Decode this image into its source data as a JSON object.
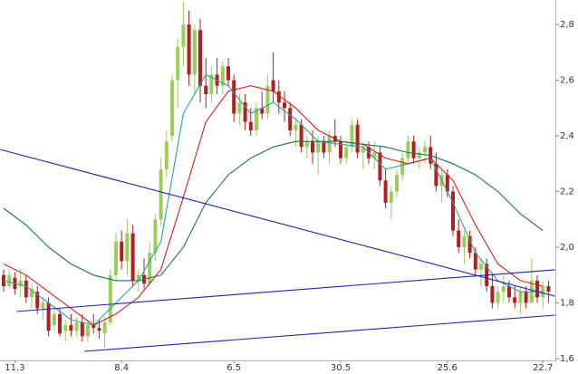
{
  "chart_data": {
    "type": "candlestick",
    "categories": [
      null,
      null,
      "11.3",
      null,
      null,
      null,
      null,
      null,
      null,
      null,
      null,
      null,
      null,
      null,
      null,
      null,
      null,
      null,
      null,
      null,
      null,
      "8.4",
      null,
      null,
      null,
      null,
      null,
      null,
      null,
      null,
      null,
      null,
      null,
      null,
      null,
      null,
      null,
      null,
      null,
      null,
      null,
      "6.5",
      null,
      null,
      null,
      null,
      null,
      null,
      null,
      null,
      null,
      null,
      null,
      null,
      null,
      null,
      null,
      null,
      null,
      null,
      "30.5",
      null,
      null,
      null,
      null,
      null,
      null,
      null,
      null,
      null,
      null,
      null,
      null,
      null,
      null,
      null,
      null,
      null,
      null,
      "25.6",
      null,
      null,
      null,
      null,
      null,
      null,
      null,
      null,
      null,
      null,
      null,
      null,
      null,
      null,
      null,
      null,
      "22.7",
      null
    ],
    "open": [
      1.9,
      1.86,
      1.89,
      1.86,
      1.88,
      1.82,
      1.84,
      1.78,
      1.8,
      1.72,
      1.76,
      1.7,
      1.72,
      1.7,
      1.73,
      1.68,
      1.72,
      1.71,
      1.69,
      1.73,
      1.9,
      2.02,
      1.95,
      2.05,
      1.88,
      1.9,
      1.87,
      1.98,
      2.1,
      2.28,
      2.4,
      2.6,
      2.72,
      2.8,
      2.62,
      2.78,
      2.58,
      2.55,
      2.62,
      2.58,
      2.65,
      2.6,
      2.48,
      2.52,
      2.45,
      2.42,
      2.5,
      2.48,
      2.6,
      2.56,
      2.52,
      2.5,
      2.42,
      2.44,
      2.36,
      2.38,
      2.34,
      2.38,
      2.34,
      2.4,
      2.38,
      2.32,
      2.36,
      2.44,
      2.34,
      2.36,
      2.32,
      2.34,
      2.24,
      2.16,
      2.2,
      2.26,
      2.32,
      2.38,
      2.32,
      2.34,
      2.36,
      2.3,
      2.22,
      2.26,
      2.2,
      2.06,
      2.0,
      2.04,
      1.98,
      1.92,
      1.94,
      1.86,
      1.8,
      1.84,
      1.86,
      1.82,
      1.8,
      1.84,
      1.8,
      1.88,
      1.82,
      1.86
    ],
    "high": [
      1.92,
      1.92,
      1.91,
      1.92,
      1.9,
      1.87,
      1.86,
      1.82,
      1.82,
      1.78,
      1.78,
      1.74,
      1.76,
      1.75,
      1.76,
      1.74,
      1.76,
      1.74,
      1.75,
      1.92,
      2.05,
      2.06,
      2.1,
      2.08,
      1.92,
      1.96,
      2.02,
      2.12,
      2.32,
      2.42,
      2.62,
      2.75,
      2.88,
      2.85,
      2.8,
      2.82,
      2.68,
      2.65,
      2.68,
      2.67,
      2.68,
      2.62,
      2.55,
      2.55,
      2.5,
      2.52,
      2.56,
      2.62,
      2.7,
      2.6,
      2.56,
      2.52,
      2.46,
      2.46,
      2.4,
      2.42,
      2.4,
      2.4,
      2.42,
      2.46,
      2.4,
      2.38,
      2.46,
      2.46,
      2.38,
      2.38,
      2.38,
      2.36,
      2.28,
      2.22,
      2.28,
      2.34,
      2.4,
      2.4,
      2.36,
      2.38,
      2.4,
      2.34,
      2.28,
      2.28,
      2.22,
      2.1,
      2.06,
      2.06,
      2.0,
      1.96,
      1.96,
      1.9,
      1.86,
      1.9,
      1.88,
      1.86,
      1.86,
      1.86,
      1.96,
      1.9,
      1.88,
      1.88
    ],
    "low": [
      1.84,
      1.85,
      1.83,
      1.82,
      1.8,
      1.78,
      1.76,
      1.74,
      1.68,
      1.7,
      1.68,
      1.66,
      1.68,
      1.68,
      1.66,
      1.66,
      1.69,
      1.67,
      1.64,
      1.72,
      1.88,
      1.92,
      1.9,
      1.86,
      1.84,
      1.85,
      1.86,
      1.95,
      2.08,
      2.25,
      2.38,
      2.5,
      2.65,
      2.58,
      2.55,
      2.52,
      2.5,
      2.52,
      2.55,
      2.55,
      2.58,
      2.45,
      2.44,
      2.42,
      2.4,
      2.4,
      2.46,
      2.46,
      2.52,
      2.48,
      2.45,
      2.4,
      2.36,
      2.34,
      2.32,
      2.3,
      2.26,
      2.32,
      2.3,
      2.36,
      2.3,
      2.3,
      2.34,
      2.32,
      2.28,
      2.3,
      2.28,
      2.22,
      2.14,
      2.1,
      2.18,
      2.24,
      2.3,
      2.3,
      2.28,
      2.3,
      2.28,
      2.2,
      2.16,
      2.18,
      2.04,
      1.98,
      1.94,
      1.96,
      1.9,
      1.86,
      1.84,
      1.78,
      1.78,
      1.8,
      1.8,
      1.78,
      1.76,
      1.78,
      1.8,
      1.8,
      1.78,
      1.8
    ],
    "close": [
      1.86,
      1.9,
      1.85,
      1.88,
      1.82,
      1.85,
      1.78,
      1.8,
      1.7,
      1.76,
      1.69,
      1.72,
      1.7,
      1.73,
      1.68,
      1.72,
      1.71,
      1.7,
      1.73,
      1.9,
      2.02,
      1.95,
      2.05,
      1.88,
      1.9,
      1.87,
      1.98,
      2.1,
      2.28,
      2.38,
      2.6,
      2.72,
      2.8,
      2.62,
      2.78,
      2.58,
      2.55,
      2.62,
      2.58,
      2.65,
      2.6,
      2.48,
      2.52,
      2.45,
      2.42,
      2.5,
      2.48,
      2.58,
      2.56,
      2.52,
      2.5,
      2.42,
      2.44,
      2.36,
      2.38,
      2.34,
      2.38,
      2.34,
      2.4,
      2.38,
      2.32,
      2.36,
      2.44,
      2.34,
      2.36,
      2.32,
      2.34,
      2.24,
      2.16,
      2.2,
      2.26,
      2.32,
      2.38,
      2.32,
      2.34,
      2.36,
      2.3,
      2.22,
      2.26,
      2.2,
      2.06,
      2.0,
      2.04,
      1.98,
      1.92,
      1.94,
      1.86,
      1.8,
      1.84,
      1.86,
      1.82,
      1.8,
      1.84,
      1.8,
      1.88,
      1.82,
      1.86,
      1.84
    ],
    "up_color": "#9acd5a",
    "down_color": "#b02020",
    "lines": [
      {
        "color": "#2aa3a3",
        "x": [
          0,
          4,
          8,
          12,
          16,
          20,
          24,
          28,
          32,
          36,
          40,
          44,
          48,
          52,
          56,
          60,
          64,
          68,
          72,
          76,
          80,
          84,
          88,
          92,
          96
        ],
        "values": [
          1.88,
          1.86,
          1.8,
          1.74,
          1.72,
          1.8,
          1.88,
          2.02,
          2.48,
          2.62,
          2.58,
          2.48,
          2.52,
          2.46,
          2.38,
          2.37,
          2.36,
          2.28,
          2.3,
          2.32,
          2.16,
          1.98,
          1.88,
          1.84,
          1.84
        ]
      },
      {
        "color": "#d02020",
        "x": [
          0,
          4,
          8,
          12,
          16,
          20,
          24,
          28,
          32,
          36,
          40,
          44,
          48,
          52,
          56,
          60,
          64,
          68,
          72,
          76,
          80,
          84,
          88,
          92,
          96
        ],
        "values": [
          1.94,
          1.9,
          1.84,
          1.78,
          1.72,
          1.76,
          1.82,
          1.92,
          2.18,
          2.45,
          2.56,
          2.58,
          2.56,
          2.5,
          2.42,
          2.38,
          2.37,
          2.32,
          2.3,
          2.32,
          2.24,
          2.08,
          1.94,
          1.88,
          1.86
        ]
      },
      {
        "color": "#1f7055",
        "x": [
          0,
          4,
          8,
          12,
          16,
          20,
          24,
          28,
          32,
          36,
          40,
          44,
          48,
          52,
          56,
          60,
          64,
          68,
          72,
          76,
          80,
          84,
          88,
          92,
          96
        ],
        "values": [
          2.14,
          2.08,
          2.0,
          1.94,
          1.9,
          1.88,
          1.88,
          1.9,
          2.0,
          2.16,
          2.26,
          2.32,
          2.36,
          2.38,
          2.38,
          2.38,
          2.37,
          2.36,
          2.34,
          2.33,
          2.3,
          2.26,
          2.2,
          2.12,
          2.06
        ]
      },
      {
        "color": "#2020b8",
        "x": [
          -0.6,
          98.2
        ],
        "values": [
          2.351,
          1.824
        ]
      },
      {
        "color": "#2020b8",
        "x": [
          2.3,
          98.2
        ],
        "values": [
          1.769,
          1.919
        ]
      },
      {
        "color": "#2020b8",
        "x": [
          14.4,
          98.2
        ],
        "values": [
          1.626,
          1.756
        ]
      }
    ],
    "ylim": [
      1.587,
      2.888
    ],
    "yticks": [
      {
        "value": 1.6,
        "label": "1,6"
      },
      {
        "value": 1.8,
        "label": "1,8"
      },
      {
        "value": 2.0,
        "label": "2,0"
      },
      {
        "value": 2.2,
        "label": "2,2"
      },
      {
        "value": 2.4,
        "label": "2,4"
      },
      {
        "value": 2.6,
        "label": "2,6"
      },
      {
        "value": 2.8,
        "label": "2,8"
      }
    ]
  }
}
